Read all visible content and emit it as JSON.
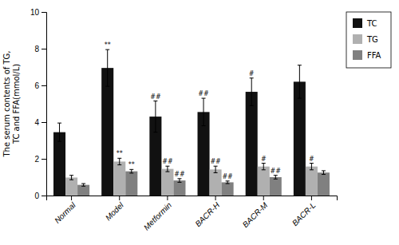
{
  "chart_data": {
    "type": "bar",
    "ylabel": "The serum contents of TG,\nTC and FFA(mmol/L)",
    "categories": [
      "Normal",
      "Model",
      "Metformin",
      "BACR-H",
      "BACR-M",
      "BACR-L"
    ],
    "series": [
      {
        "name": "TC",
        "color": "#111111",
        "values": [
          3.45,
          6.95,
          4.3,
          4.55,
          5.65,
          6.2
        ],
        "errors": [
          0.5,
          1.0,
          0.85,
          0.75,
          0.75,
          0.9
        ],
        "annotations": [
          null,
          "**",
          "##",
          "##",
          "#",
          null
        ]
      },
      {
        "name": "TG",
        "color": "#b0b0b0",
        "values": [
          0.98,
          1.85,
          1.45,
          1.42,
          1.58,
          1.58
        ],
        "errors": [
          0.12,
          0.18,
          0.15,
          0.18,
          0.18,
          0.18
        ],
        "annotations": [
          null,
          "**",
          "##",
          "##",
          "#",
          "#"
        ]
      },
      {
        "name": "FFA",
        "color": "#808080",
        "values": [
          0.58,
          1.32,
          0.82,
          0.72,
          1.0,
          1.25
        ],
        "errors": [
          0.07,
          0.1,
          0.1,
          0.07,
          0.1,
          0.1
        ],
        "annotations": [
          null,
          "**",
          "##",
          "##",
          "##",
          null
        ]
      }
    ],
    "ylim": [
      0,
      10
    ],
    "yticks": [
      0,
      2,
      4,
      6,
      8,
      10
    ],
    "grid": false,
    "legend": "right"
  }
}
